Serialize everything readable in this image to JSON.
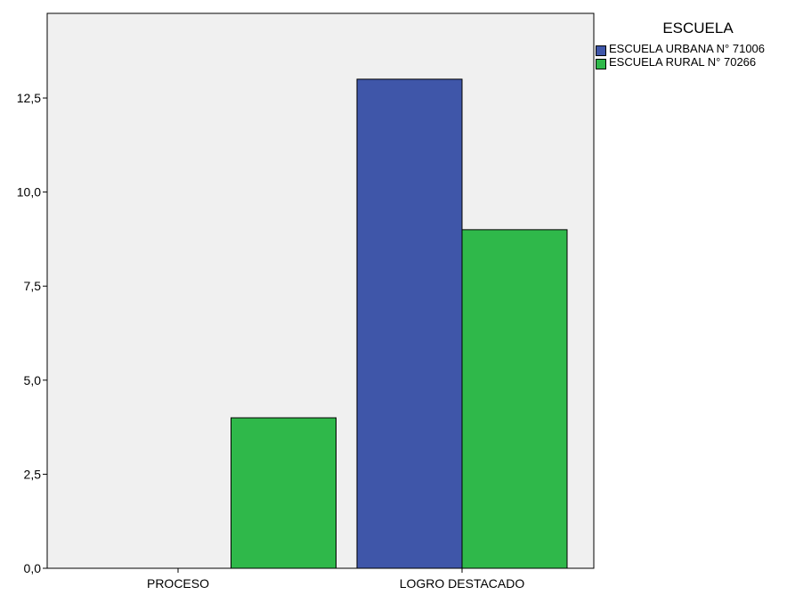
{
  "chart_data": {
    "type": "bar",
    "categories": [
      "PROCESO",
      "LOGRO DESTACADO"
    ],
    "series": [
      {
        "name": "ESCUELA URBANA  N° 71006",
        "color": "#3f56a9",
        "values": [
          0,
          13
        ]
      },
      {
        "name": "ESCUELA RURAL N° 70266",
        "color": "#2fb84a",
        "values": [
          4,
          9
        ]
      }
    ],
    "y_ticks": [
      "0,0",
      "2,5",
      "5,0",
      "7,5",
      "10,0",
      "12,5"
    ],
    "y_tick_values": [
      0,
      2.5,
      5,
      7.5,
      10,
      12.5
    ],
    "ylim": [
      0,
      14.75
    ],
    "xlabel": "",
    "ylabel": "",
    "legend_title": "ESCUELA",
    "legend_position": "top-right",
    "plot_background": "#f0f0f0",
    "grid": false
  }
}
